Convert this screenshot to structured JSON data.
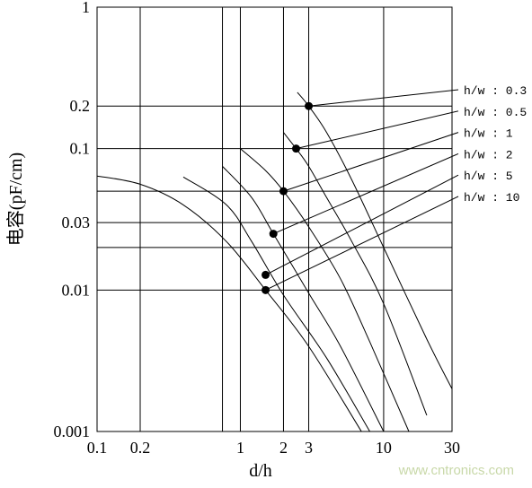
{
  "chart_data": {
    "type": "line",
    "title": "",
    "xlabel": "d/h",
    "ylabel": "电容(pF/cm)",
    "x_scale": "log",
    "y_scale": "log",
    "xlim": [
      0.1,
      30
    ],
    "ylim": [
      0.001,
      1
    ],
    "x_tick_labels": [
      "0.1",
      "0.2",
      "1",
      "2",
      "3",
      "10",
      "30"
    ],
    "x_tick_values": [
      0.1,
      0.2,
      1,
      2,
      3,
      10,
      30
    ],
    "x_grid_values": [
      0.1,
      0.2,
      0.75,
      1,
      2,
      3,
      10,
      30
    ],
    "y_tick_labels": [
      "1",
      "0.2",
      "0.1",
      "0.03",
      "0.01",
      "0.001"
    ],
    "y_tick_values": [
      1,
      0.2,
      0.1,
      0.03,
      0.01,
      0.001
    ],
    "y_grid_values": [
      1,
      0.2,
      0.1,
      0.05,
      0.03,
      0.02,
      0.01,
      0.001
    ],
    "grid": true,
    "legend": "right",
    "series": [
      {
        "name": "h/w : 0.3",
        "marker": {
          "x": 3.0,
          "y": 0.2
        },
        "x": [
          2.5,
          3.0,
          4.0,
          6.0,
          10.0,
          20.0,
          30.0
        ],
        "y": [
          0.25,
          0.2,
          0.13,
          0.06,
          0.02,
          0.0045,
          0.002
        ]
      },
      {
        "name": "h/w : 0.5",
        "marker": {
          "x": 2.45,
          "y": 0.1
        },
        "x": [
          2.0,
          2.45,
          3.0,
          4.0,
          6.0,
          10.0,
          20.0
        ],
        "y": [
          0.13,
          0.1,
          0.075,
          0.045,
          0.022,
          0.008,
          0.0013
        ]
      },
      {
        "name": "h/w : 1",
        "marker": {
          "x": 2.0,
          "y": 0.05
        },
        "x": [
          1.0,
          1.5,
          2.0,
          3.0,
          5.0,
          8.0,
          15.0
        ],
        "y": [
          0.1,
          0.07,
          0.05,
          0.028,
          0.012,
          0.0043,
          0.001
        ]
      },
      {
        "name": "h/w : 2",
        "marker": {
          "x": 1.7,
          "y": 0.025
        },
        "x": [
          0.75,
          1.2,
          1.7,
          3.0,
          5.0,
          10.0
        ],
        "y": [
          0.075,
          0.045,
          0.025,
          0.0095,
          0.004,
          0.001
        ]
      },
      {
        "name": "h/w : 5",
        "marker": {
          "x": 1.5,
          "y": 0.0128
        },
        "x": [
          0.4,
          0.8,
          1.2,
          2.0,
          4.0,
          8.0
        ],
        "y": [
          0.063,
          0.04,
          0.022,
          0.0092,
          0.0033,
          0.001
        ]
      },
      {
        "name": "h/w : 10",
        "marker": {
          "x": 1.5,
          "y": 0.01
        },
        "x": [
          0.1,
          0.2,
          0.4,
          0.8,
          1.5,
          3.0,
          7.0
        ],
        "y": [
          0.064,
          0.056,
          0.04,
          0.022,
          0.01,
          0.004,
          0.001
        ]
      }
    ]
  },
  "watermark": "www.cntronics.com"
}
